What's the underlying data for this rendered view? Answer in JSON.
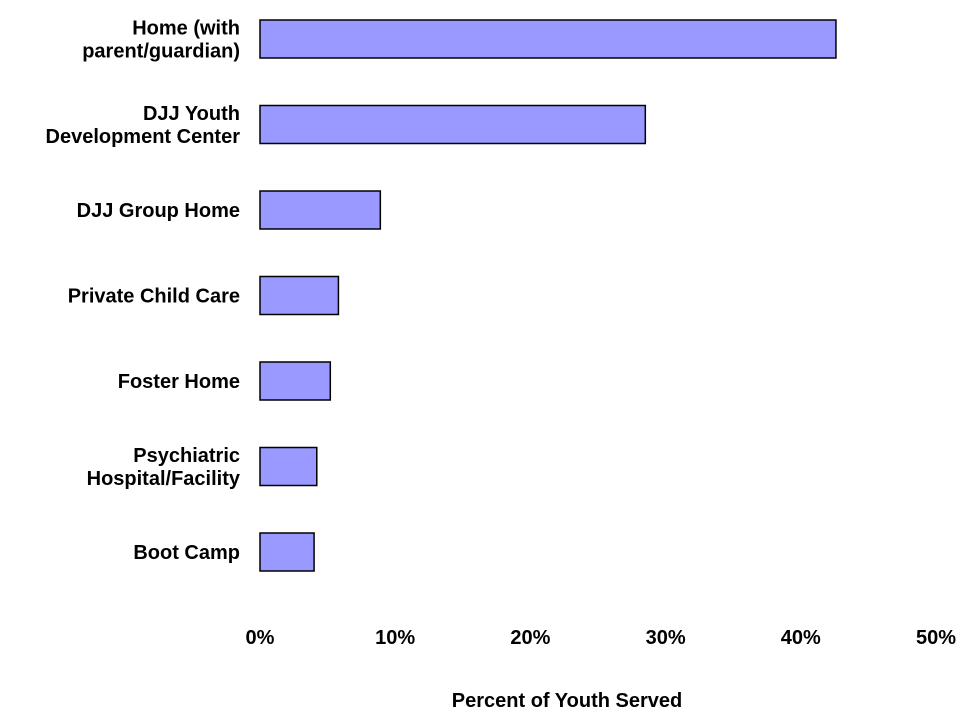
{
  "chart_data": {
    "type": "bar",
    "orientation": "horizontal",
    "title": "",
    "xlabel": "Percent of Youth Served",
    "ylabel": "",
    "categories": [
      [
        "Home (with",
        "parent/guardian)"
      ],
      [
        "DJJ Youth",
        "Development Center"
      ],
      [
        "DJJ Group Home"
      ],
      [
        "Private Child Care"
      ],
      [
        "Foster Home"
      ],
      [
        "Psychiatric",
        "Hospital/Facility"
      ],
      [
        "Boot Camp"
      ]
    ],
    "values": [
      42.6,
      28.5,
      8.9,
      5.8,
      5.2,
      4.2,
      4.0
    ],
    "xlim": [
      0,
      50
    ],
    "x_ticks": [
      "0%",
      "10%",
      "20%",
      "30%",
      "40%",
      "50%"
    ],
    "grid": false,
    "legend": "none",
    "bar_color": "#9999FF",
    "bar_edge_color": "#000000"
  }
}
